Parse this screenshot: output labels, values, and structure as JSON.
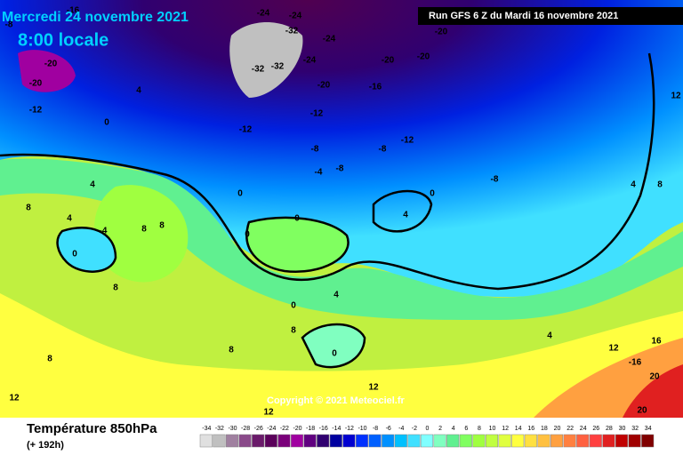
{
  "header": {
    "date": "Mercredi 24 novembre 2021",
    "time": "8:00 locale",
    "run": "Run GFS 6 Z du Mardi 16 novembre 2021",
    "copyright": "Copyright © 2021 Meteociel.fr"
  },
  "footer": {
    "title": "Température 850hPa",
    "lead": "(+ 192h)"
  },
  "legend": {
    "values": [
      -34,
      -32,
      -30,
      -28,
      -26,
      -24,
      -22,
      -20,
      -18,
      -16,
      -14,
      -12,
      -10,
      -8,
      -6,
      -4,
      -2,
      0,
      2,
      4,
      6,
      8,
      10,
      12,
      14,
      16,
      18,
      20,
      22,
      24,
      26,
      28,
      30,
      32,
      34
    ],
    "colors": [
      "#e0e0e0",
      "#c0c0c0",
      "#a080a0",
      "#8a4a8a",
      "#6a1a6a",
      "#5a005a",
      "#7a007a",
      "#a000a0",
      "#600080",
      "#300070",
      "#0000a0",
      "#0000d0",
      "#0030ff",
      "#0060ff",
      "#0090ff",
      "#00c0ff",
      "#40e0ff",
      "#80ffff",
      "#80ffc0",
      "#60f090",
      "#80ff60",
      "#a0ff40",
      "#c0ff40",
      "#e0ff40",
      "#ffff40",
      "#ffe040",
      "#ffc040",
      "#ffa040",
      "#ff8040",
      "#ff6040",
      "#ff4040",
      "#e02020",
      "#c00000",
      "#a00000",
      "#800000"
    ]
  },
  "map_labels": [
    "-16",
    "-8",
    "-20",
    "-20",
    "-12",
    "-24",
    "-24",
    "-32",
    "-24",
    "-32",
    "-32",
    "-24",
    "-20",
    "-12",
    "-16",
    "-20",
    "-20",
    "-20",
    "-12",
    "-8",
    "-8",
    "-12",
    "-4",
    "-8",
    "-8",
    "0",
    "4",
    "4",
    "0",
    "0",
    "0",
    "4",
    "0",
    "-4",
    "8",
    "8",
    "8",
    "4",
    "0",
    "8",
    "0",
    "4",
    "8",
    "0",
    "8",
    "12",
    "12",
    "12",
    "16",
    "-16",
    "20",
    "20",
    "12",
    "8",
    "12",
    "4",
    "4",
    "8"
  ]
}
